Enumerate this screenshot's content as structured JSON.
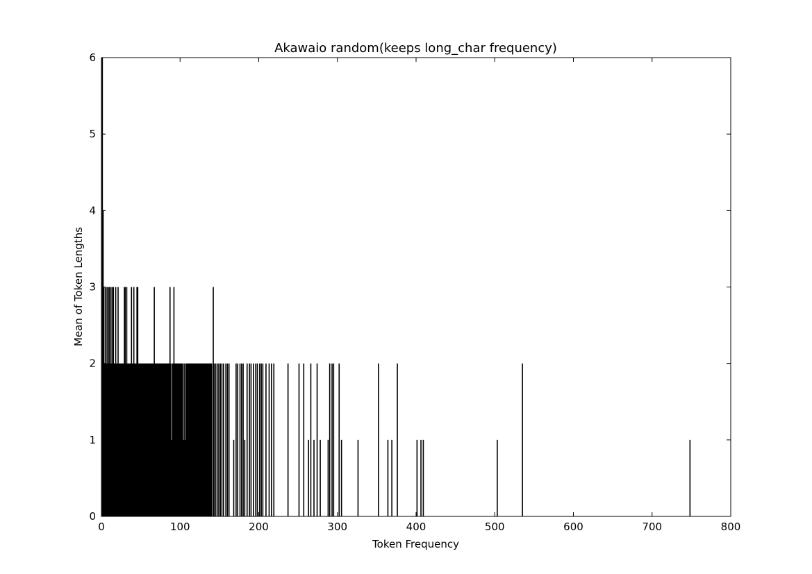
{
  "chart_data": {
    "type": "bar",
    "title": "Akawaio random(keeps long_char frequency)",
    "xlabel": "Token Frequency",
    "ylabel": "Mean of Token Lengths",
    "xlim": [
      0,
      800
    ],
    "ylim": [
      0,
      6
    ],
    "xticks": [
      "0",
      "100",
      "200",
      "300",
      "400",
      "500",
      "600",
      "700",
      "800"
    ],
    "yticks": [
      "0",
      "1",
      "2",
      "3",
      "4",
      "5",
      "6"
    ],
    "grid": false,
    "legend": "none",
    "bar_color": "#000000",
    "x": [
      1,
      2,
      3,
      4,
      5,
      6,
      7,
      8,
      9,
      10,
      11,
      12,
      13,
      14,
      15,
      16,
      17,
      18,
      19,
      20,
      21,
      22,
      23,
      24,
      25,
      26,
      27,
      28,
      29,
      30,
      31,
      32,
      33,
      34,
      35,
      36,
      37,
      38,
      39,
      40,
      41,
      42,
      43,
      44,
      45,
      46,
      47,
      48,
      49,
      50,
      51,
      52,
      53,
      54,
      55,
      56,
      57,
      58,
      59,
      60,
      61,
      62,
      63,
      64,
      65,
      66,
      67,
      68,
      69,
      70,
      71,
      72,
      73,
      74,
      75,
      76,
      77,
      78,
      79,
      80,
      81,
      82,
      83,
      84,
      85,
      86,
      87,
      88,
      89,
      90,
      91,
      92,
      93,
      94,
      95,
      96,
      97,
      98,
      99,
      100,
      101,
      102,
      103,
      104,
      105,
      106,
      107,
      108,
      109,
      110,
      111,
      112,
      113,
      114,
      115,
      116,
      117,
      118,
      119,
      120,
      121,
      122,
      123,
      124,
      125,
      126,
      127,
      128,
      129,
      130,
      131,
      132,
      133,
      134,
      135,
      136,
      137,
      138,
      139,
      140,
      142,
      143,
      145,
      147,
      149,
      151,
      153,
      155,
      158,
      160,
      162,
      168,
      171,
      173,
      176,
      178,
      180,
      182,
      185,
      188,
      190,
      193,
      196,
      198,
      201,
      203,
      205,
      209,
      213,
      216,
      219,
      237,
      251,
      257,
      263,
      266,
      270,
      274,
      278,
      288,
      290,
      293,
      295,
      302,
      305,
      326,
      352,
      364,
      369,
      376,
      401,
      406,
      409,
      503,
      535,
      748
    ],
    "values": [
      6,
      4,
      3,
      2,
      3,
      2,
      3,
      2,
      3,
      3,
      2,
      3,
      2,
      3,
      3,
      2,
      2,
      3,
      2,
      2,
      3,
      2,
      2,
      2,
      2,
      2,
      2,
      2,
      3,
      3,
      2,
      3,
      2,
      2,
      2,
      2,
      2,
      3,
      2,
      2,
      3,
      2,
      2,
      2,
      3,
      3,
      2,
      2,
      2,
      2,
      2,
      2,
      2,
      2,
      2,
      2,
      2,
      2,
      2,
      2,
      2,
      2,
      2,
      2,
      2,
      2,
      3,
      2,
      2,
      2,
      2,
      2,
      2,
      2,
      2,
      2,
      2,
      2,
      2,
      2,
      2,
      2,
      2,
      2,
      2,
      2,
      3,
      2,
      1,
      2,
      2,
      3,
      2,
      2,
      2,
      2,
      2,
      2,
      2,
      2,
      2,
      2,
      2,
      1,
      2,
      1,
      2,
      2,
      2,
      2,
      2,
      2,
      2,
      2,
      2,
      2,
      2,
      2,
      2,
      2,
      2,
      2,
      2,
      2,
      2,
      2,
      2,
      2,
      2,
      2,
      2,
      2,
      2,
      2,
      2,
      2,
      2,
      2,
      2,
      2,
      3,
      2,
      2,
      2,
      2,
      2,
      2,
      2,
      2,
      2,
      2,
      1,
      2,
      2,
      2,
      2,
      2,
      1,
      2,
      2,
      2,
      2,
      2,
      2,
      2,
      2,
      2,
      2,
      2,
      2,
      2,
      2,
      2,
      2,
      1,
      2,
      1,
      2,
      1,
      1,
      2,
      2,
      2,
      2,
      1,
      1,
      2,
      1,
      1,
      2,
      1,
      1,
      1,
      1,
      2,
      1
    ]
  }
}
